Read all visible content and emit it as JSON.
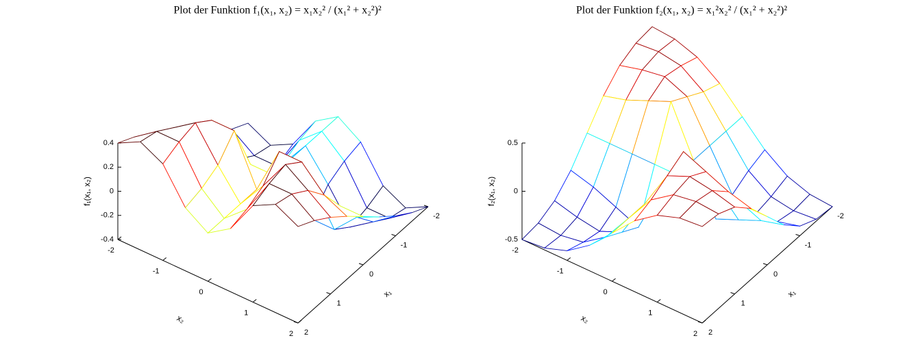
{
  "chart_data": [
    {
      "type": "surface",
      "title": "Plot der Funktion f₁(x₁, x₂) = x₁x₂² / (x₁² + x₂²)²",
      "xlabel": "x₁",
      "ylabel": "x₂",
      "zlabel": "f₁(x₁, x₂)",
      "colormap": "jet",
      "x1": [
        -2,
        -1.5,
        -1,
        -0.5,
        0,
        0.5,
        1,
        1.5,
        2
      ],
      "x2": [
        -2,
        -1.5,
        -1,
        -0.5,
        0,
        0.5,
        1,
        1.5,
        2
      ],
      "z": [
        [
          -0.4,
          -0.497,
          -0.4,
          -0.123,
          0,
          -0.123,
          -0.4,
          -0.497,
          -0.4
        ],
        [
          -0.329,
          -0.462,
          -0.462,
          -0.162,
          0,
          -0.162,
          -0.462,
          -0.462,
          -0.329
        ],
        [
          -0.235,
          -0.371,
          -0.5,
          -0.235,
          0,
          -0.235,
          -0.5,
          -0.371,
          -0.235
        ],
        [
          -0.123,
          -0.212,
          -0.4,
          -0.4,
          0,
          -0.4,
          -0.4,
          -0.212,
          -0.123
        ],
        [
          0,
          0,
          0,
          0,
          0,
          0,
          0,
          0,
          0
        ],
        [
          0.123,
          0.212,
          0.4,
          0.4,
          0,
          0.4,
          0.4,
          0.212,
          0.123
        ],
        [
          0.235,
          0.371,
          0.5,
          0.235,
          0,
          0.235,
          0.5,
          0.371,
          0.235
        ],
        [
          0.329,
          0.462,
          0.462,
          0.162,
          0,
          0.162,
          0.462,
          0.462,
          0.329
        ],
        [
          0.4,
          0.497,
          0.4,
          0.123,
          0,
          0.123,
          0.4,
          0.497,
          0.4
        ]
      ],
      "x1lim": [
        -2,
        2
      ],
      "x2lim": [
        -2,
        2
      ],
      "zlim": [
        -0.4,
        0.4
      ],
      "x1ticks": [
        -2,
        -1,
        0,
        1,
        2
      ],
      "x2ticks": [
        -2,
        -1,
        0,
        1,
        2
      ],
      "zticks": [
        -0.4,
        -0.2,
        0,
        0.2,
        0.4
      ]
    },
    {
      "type": "surface",
      "title": "Plot der Funktion f₂(x₁, x₂) = x₁²x₂² / (x₁² + x₂²)²",
      "xlabel": "x₁",
      "ylabel": "x₂",
      "zlabel": "f₂(x₁, x₂)",
      "colormap": "jet",
      "x1": [
        -2,
        -1.5,
        -1,
        -0.5,
        0,
        0.5,
        1,
        1.5,
        2
      ],
      "x2": [
        -2,
        -1.5,
        -1,
        -0.5,
        0,
        0.5,
        1,
        1.5,
        2
      ],
      "z": [
        [
          0.5,
          0.48,
          0.4,
          0.235,
          0,
          -0.235,
          -0.4,
          -0.48,
          -0.5
        ],
        [
          0.48,
          0.5,
          0.462,
          0.3,
          0,
          -0.3,
          -0.462,
          -0.5,
          -0.48
        ],
        [
          0.4,
          0.462,
          0.5,
          0.4,
          0,
          -0.4,
          -0.5,
          -0.462,
          -0.4
        ],
        [
          0.235,
          0.3,
          0.4,
          0.5,
          0,
          -0.5,
          -0.4,
          -0.3,
          -0.235
        ],
        [
          0,
          0,
          0,
          0,
          0,
          0,
          0,
          0,
          0
        ],
        [
          -0.235,
          -0.3,
          -0.4,
          -0.5,
          0,
          0.5,
          0.4,
          0.3,
          0.235
        ],
        [
          -0.4,
          -0.462,
          -0.5,
          -0.4,
          0,
          0.4,
          0.5,
          0.462,
          0.4
        ],
        [
          -0.48,
          -0.5,
          -0.462,
          -0.3,
          0,
          0.3,
          0.462,
          0.5,
          0.48
        ],
        [
          -0.5,
          -0.48,
          -0.4,
          -0.235,
          0,
          0.235,
          0.4,
          0.48,
          0.5
        ]
      ],
      "x1lim": [
        -2,
        2
      ],
      "x2lim": [
        -2,
        2
      ],
      "zlim": [
        -0.5,
        0.5
      ],
      "x1ticks": [
        -2,
        -1,
        0,
        1,
        2
      ],
      "x2ticks": [
        -2,
        -1,
        0,
        1,
        2
      ],
      "zticks": [
        -0.5,
        0,
        0.5
      ]
    }
  ]
}
